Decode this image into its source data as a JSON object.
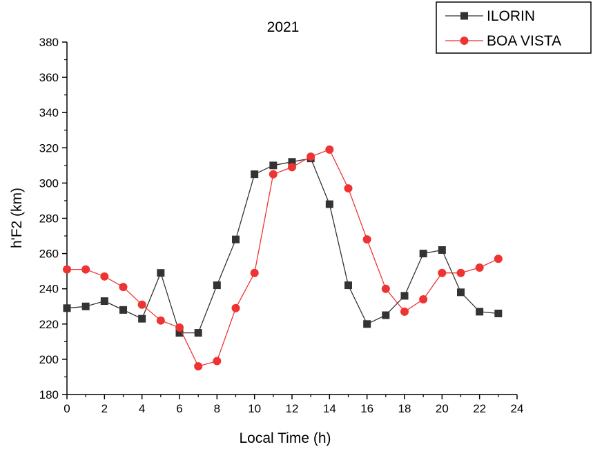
{
  "chart_data": {
    "type": "line",
    "title": "2021",
    "xlabel": "Local Time (h)",
    "ylabel": "h'F2 (km)",
    "xlim": [
      0,
      24
    ],
    "ylim": [
      180,
      380
    ],
    "xticks": [
      0,
      2,
      4,
      6,
      8,
      10,
      12,
      14,
      16,
      18,
      20,
      22,
      24
    ],
    "yticks": [
      180,
      200,
      220,
      240,
      260,
      280,
      300,
      320,
      340,
      360,
      380
    ],
    "grid": false,
    "legend_position": "top-right",
    "x": [
      0,
      1,
      2,
      3,
      4,
      5,
      6,
      7,
      8,
      9,
      10,
      11,
      12,
      13,
      14,
      15,
      16,
      17,
      18,
      19,
      20,
      21,
      22,
      23
    ],
    "series": [
      {
        "name": "ILORIN",
        "color": "#333333",
        "marker": "square",
        "values": [
          229,
          230,
          233,
          228,
          223,
          249,
          215,
          215,
          242,
          268,
          305,
          310,
          312,
          314,
          288,
          242,
          220,
          225,
          236,
          260,
          262,
          238,
          227,
          226
        ]
      },
      {
        "name": "BOA VISTA",
        "color": "#ee3333",
        "marker": "circle",
        "values": [
          251,
          251,
          247,
          241,
          231,
          222,
          218,
          196,
          199,
          229,
          249,
          305,
          309,
          315,
          319,
          297,
          268,
          240,
          227,
          234,
          249,
          249,
          252,
          257
        ]
      }
    ]
  }
}
